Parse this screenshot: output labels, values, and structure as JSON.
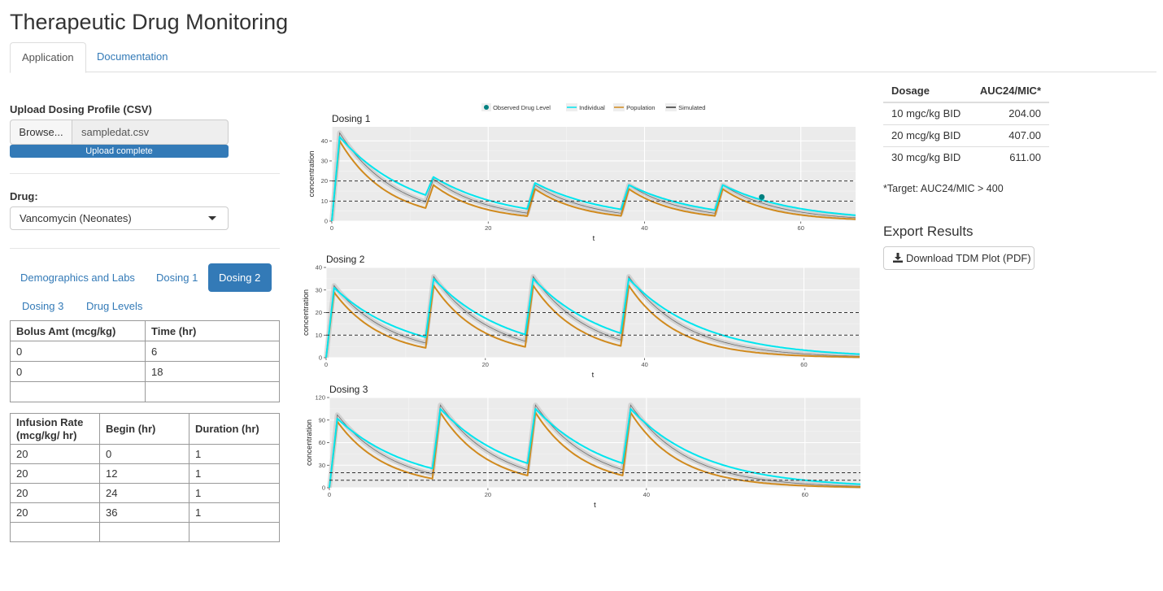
{
  "app": {
    "title": "Therapeutic Drug Monitoring"
  },
  "main_tabs": [
    {
      "label": "Application",
      "active": true
    },
    {
      "label": "Documentation",
      "active": false
    }
  ],
  "upload": {
    "label": "Upload Dosing Profile (CSV)",
    "browse_label": "Browse...",
    "file_name": "sampledat.csv",
    "progress_text": "Upload complete",
    "progress_fraction": 1.0
  },
  "drug": {
    "label": "Drug:",
    "selected": "Vancomycin (Neonates)"
  },
  "sub_tabs": [
    {
      "label": "Demographics and Labs",
      "active": false
    },
    {
      "label": "Dosing 1",
      "active": false
    },
    {
      "label": "Dosing 2",
      "active": true
    },
    {
      "label": "Dosing 3",
      "active": false
    },
    {
      "label": "Drug Levels",
      "active": false
    }
  ],
  "bolus_table": {
    "headers": [
      "Bolus Amt (mcg/kg)",
      "Time (hr)"
    ],
    "rows": [
      [
        "0",
        "6"
      ],
      [
        "0",
        "18"
      ],
      [
        "",
        ""
      ]
    ]
  },
  "infusion_table": {
    "headers": [
      "Infusion Rate (mcg/kg/ hr)",
      "Begin (hr)",
      "Duration (hr)"
    ],
    "rows": [
      [
        "20",
        "0",
        "1"
      ],
      [
        "20",
        "12",
        "1"
      ],
      [
        "20",
        "24",
        "1"
      ],
      [
        "20",
        "36",
        "1"
      ],
      [
        "",
        "",
        ""
      ]
    ]
  },
  "legend": {
    "items": [
      "Observed Drug Level",
      "Individual",
      "Population",
      "Simulated"
    ],
    "colors": {
      "observed": "#008080",
      "individual": "#00E5EE",
      "population": "#D08A1E",
      "simulated": "#333333"
    }
  },
  "chart_data": [
    {
      "type": "line",
      "title": "Dosing 1",
      "xlabel": "t",
      "ylabel": "concentration",
      "xlim": [
        0,
        67
      ],
      "ylim": [
        0,
        47
      ],
      "xticks": [
        0,
        20,
        40,
        60
      ],
      "yticks": [
        0,
        10,
        20,
        30,
        40
      ],
      "reference_lines": [
        10,
        20
      ],
      "dose_times": [
        0,
        12,
        25,
        37,
        49
      ],
      "series": [
        {
          "name": "Individual",
          "peaks": [
            42,
            22,
            19,
            18,
            18
          ],
          "half_life": 6.5
        },
        {
          "name": "Population",
          "peaks": [
            40,
            18,
            16,
            16,
            16
          ],
          "half_life": 4.2
        },
        {
          "name": "Simulated",
          "peaks": [
            44,
            21,
            18,
            18,
            18
          ],
          "half_life": 5.0
        }
      ],
      "observed": [
        {
          "x": 55,
          "y": 12
        }
      ]
    },
    {
      "type": "line",
      "title": "Dosing 2",
      "xlabel": "t",
      "ylabel": "concentration",
      "xlim": [
        0,
        67
      ],
      "ylim": [
        0,
        40
      ],
      "xticks": [
        0,
        20,
        40,
        60
      ],
      "yticks": [
        0,
        10,
        20,
        30,
        40
      ],
      "reference_lines": [
        10,
        20
      ],
      "dose_times": [
        0,
        12.5,
        25,
        37
      ],
      "series": [
        {
          "name": "Individual",
          "peaks": [
            31,
            35,
            35,
            35
          ],
          "half_life": 6.5
        },
        {
          "name": "Population",
          "peaks": [
            29,
            32,
            32,
            32
          ],
          "half_life": 4.2
        },
        {
          "name": "Simulated",
          "peaks": [
            32,
            36,
            36,
            36
          ],
          "half_life": 5.0
        }
      ],
      "observed": []
    },
    {
      "type": "line",
      "title": "Dosing 3",
      "xlabel": "t",
      "ylabel": "concentration",
      "xlim": [
        0,
        67
      ],
      "ylim": [
        0,
        120
      ],
      "xticks": [
        0,
        20,
        40,
        60
      ],
      "yticks": [
        0,
        30,
        60,
        90,
        120
      ],
      "reference_lines": [
        10,
        20
      ],
      "dose_times": [
        0,
        13,
        25,
        37
      ],
      "series": [
        {
          "name": "Individual",
          "peaks": [
            92,
            105,
            105,
            105
          ],
          "half_life": 6.5
        },
        {
          "name": "Population",
          "peaks": [
            88,
            100,
            100,
            100
          ],
          "half_life": 4.2
        },
        {
          "name": "Simulated",
          "peaks": [
            97,
            110,
            110,
            110
          ],
          "half_life": 5.0
        }
      ],
      "observed": []
    }
  ],
  "auc_table": {
    "headers": [
      "Dosage",
      "AUC24/MIC*"
    ],
    "rows": [
      [
        "10 mgc/kg BID",
        "204.00"
      ],
      [
        "20 mcg/kg BID",
        "407.00"
      ],
      [
        "30 mcg/kg BID",
        "611.00"
      ]
    ]
  },
  "target_note": "*Target: AUC24/MIC > 400",
  "export": {
    "title": "Export Results",
    "download_label": "Download TDM Plot (PDF)",
    "icon": "download-icon"
  }
}
